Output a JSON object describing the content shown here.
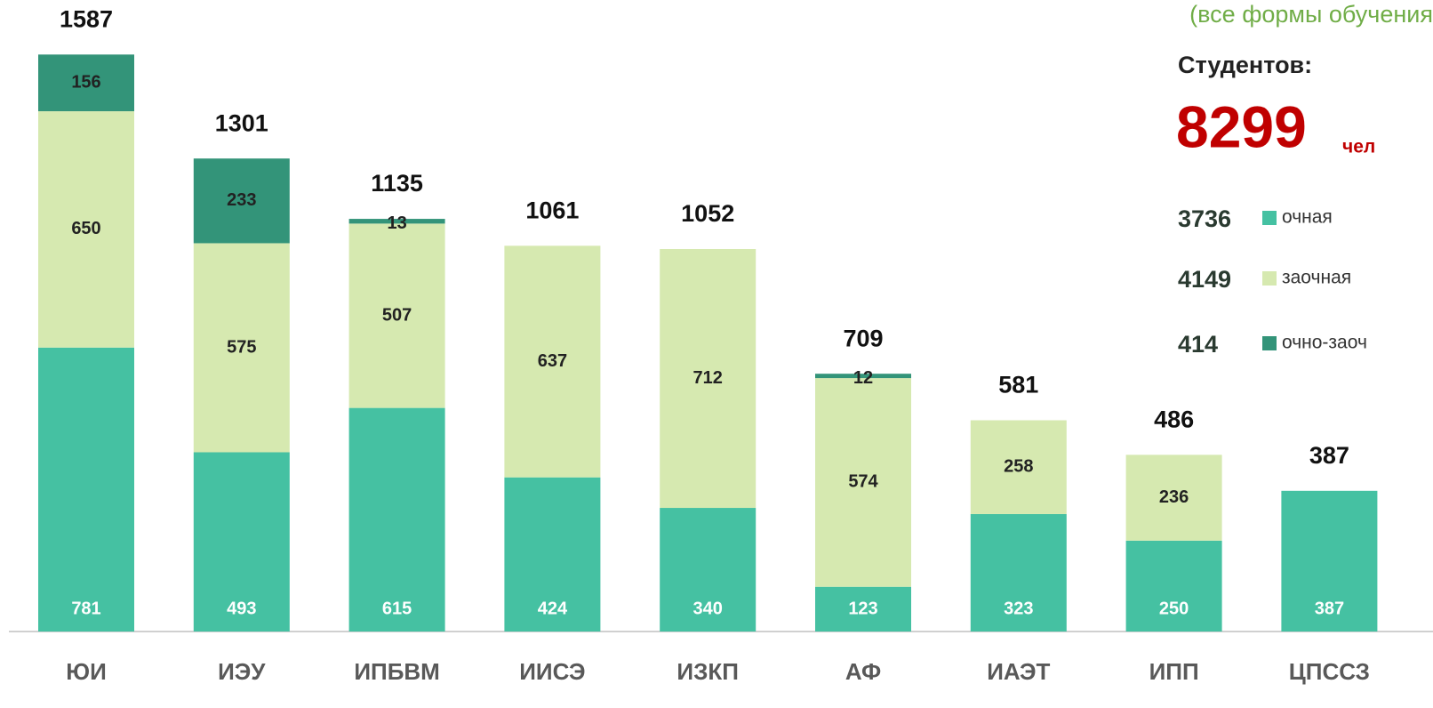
{
  "chart_data": {
    "type": "stacked_bar",
    "subtitle": "(все формы обучения",
    "students_label": "Студентов:",
    "students_total": 8299,
    "students_unit": "чел",
    "categories": [
      "ЮИ",
      "ИЭУ",
      "ИПБВМ",
      "ИИСЭ",
      "ИЗКП",
      "АФ",
      "ИАЭТ",
      "ИПП",
      "ЦПССЗ"
    ],
    "series": [
      {
        "name": "очная",
        "color": "#45c1a2",
        "total": 3736,
        "values": [
          781,
          493,
          615,
          424,
          340,
          123,
          323,
          250,
          387
        ]
      },
      {
        "name": "заочная",
        "color": "#d6e9b0",
        "total": 4149,
        "values": [
          650,
          575,
          507,
          637,
          712,
          574,
          258,
          236,
          null
        ]
      },
      {
        "name": "очно-заоч",
        "color": "#339479",
        "total": 414,
        "values": [
          156,
          233,
          13,
          null,
          null,
          12,
          null,
          null,
          null
        ]
      }
    ],
    "totals": [
      1587,
      1301,
      1135,
      1061,
      1052,
      709,
      581,
      486,
      387
    ],
    "ylim": [
      0,
      1600
    ]
  }
}
